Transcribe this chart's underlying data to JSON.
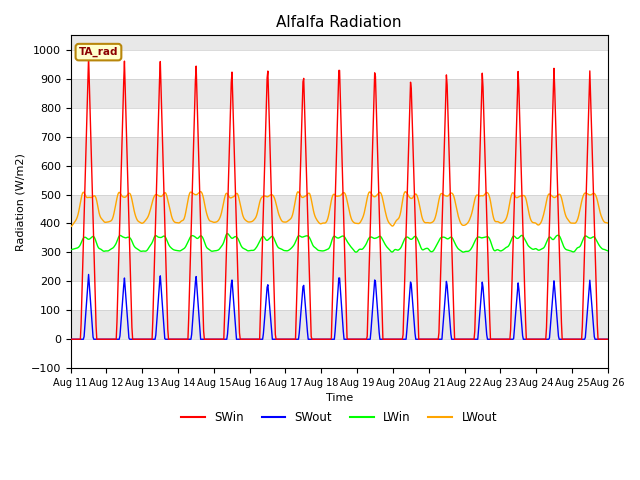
{
  "title": "Alfalfa Radiation",
  "ylabel": "Radiation (W/m2)",
  "xlabel": "Time",
  "ylim": [
    -100,
    1050
  ],
  "n_days": 15,
  "background_color": "#e8e8e8",
  "grid_color": "white",
  "legend_label": "TA_rad",
  "xtick_labels": [
    "Aug 11",
    "Aug 12",
    "Aug 13",
    "Aug 14",
    "Aug 15",
    "Aug 16",
    "Aug 17",
    "Aug 18",
    "Aug 19",
    "Aug 20",
    "Aug 21",
    "Aug 22",
    "Aug 23",
    "Aug 24",
    "Aug 25",
    "Aug 26"
  ],
  "series_colors": {
    "SWin": "red",
    "SWout": "blue",
    "LWin": "#00ff00",
    "LWout": "orange"
  },
  "SWin_peak": [
    980,
    970,
    975,
    965,
    950,
    960,
    940,
    975,
    960,
    920,
    940,
    940,
    940,
    945,
    930
  ],
  "SWout_peak": [
    225,
    215,
    225,
    225,
    215,
    200,
    200,
    230,
    220,
    210,
    210,
    205,
    200,
    205,
    205
  ],
  "LWin_base": 305,
  "LWout_base": 390,
  "line_width": 1.0,
  "fig_width": 6.4,
  "fig_height": 4.8,
  "dpi": 100
}
